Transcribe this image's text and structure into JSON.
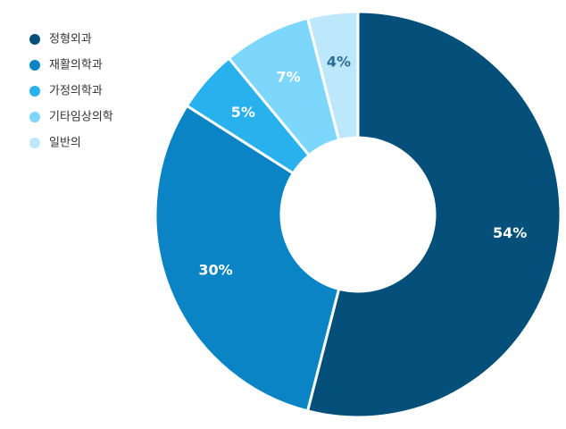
{
  "chart_data": {
    "type": "donut",
    "categories": [
      "정형외과",
      "재활의학과",
      "가정의학과",
      "기타임상의학",
      "일반의"
    ],
    "values": [
      54,
      30,
      5,
      7,
      4
    ],
    "value_labels": [
      "54%",
      "30%",
      "5%",
      "7%",
      "4%"
    ],
    "colors": [
      "#04507a",
      "#0a84c4",
      "#29b1ee",
      "#7dd6fb",
      "#bde8fb"
    ],
    "legend": "top-left"
  }
}
